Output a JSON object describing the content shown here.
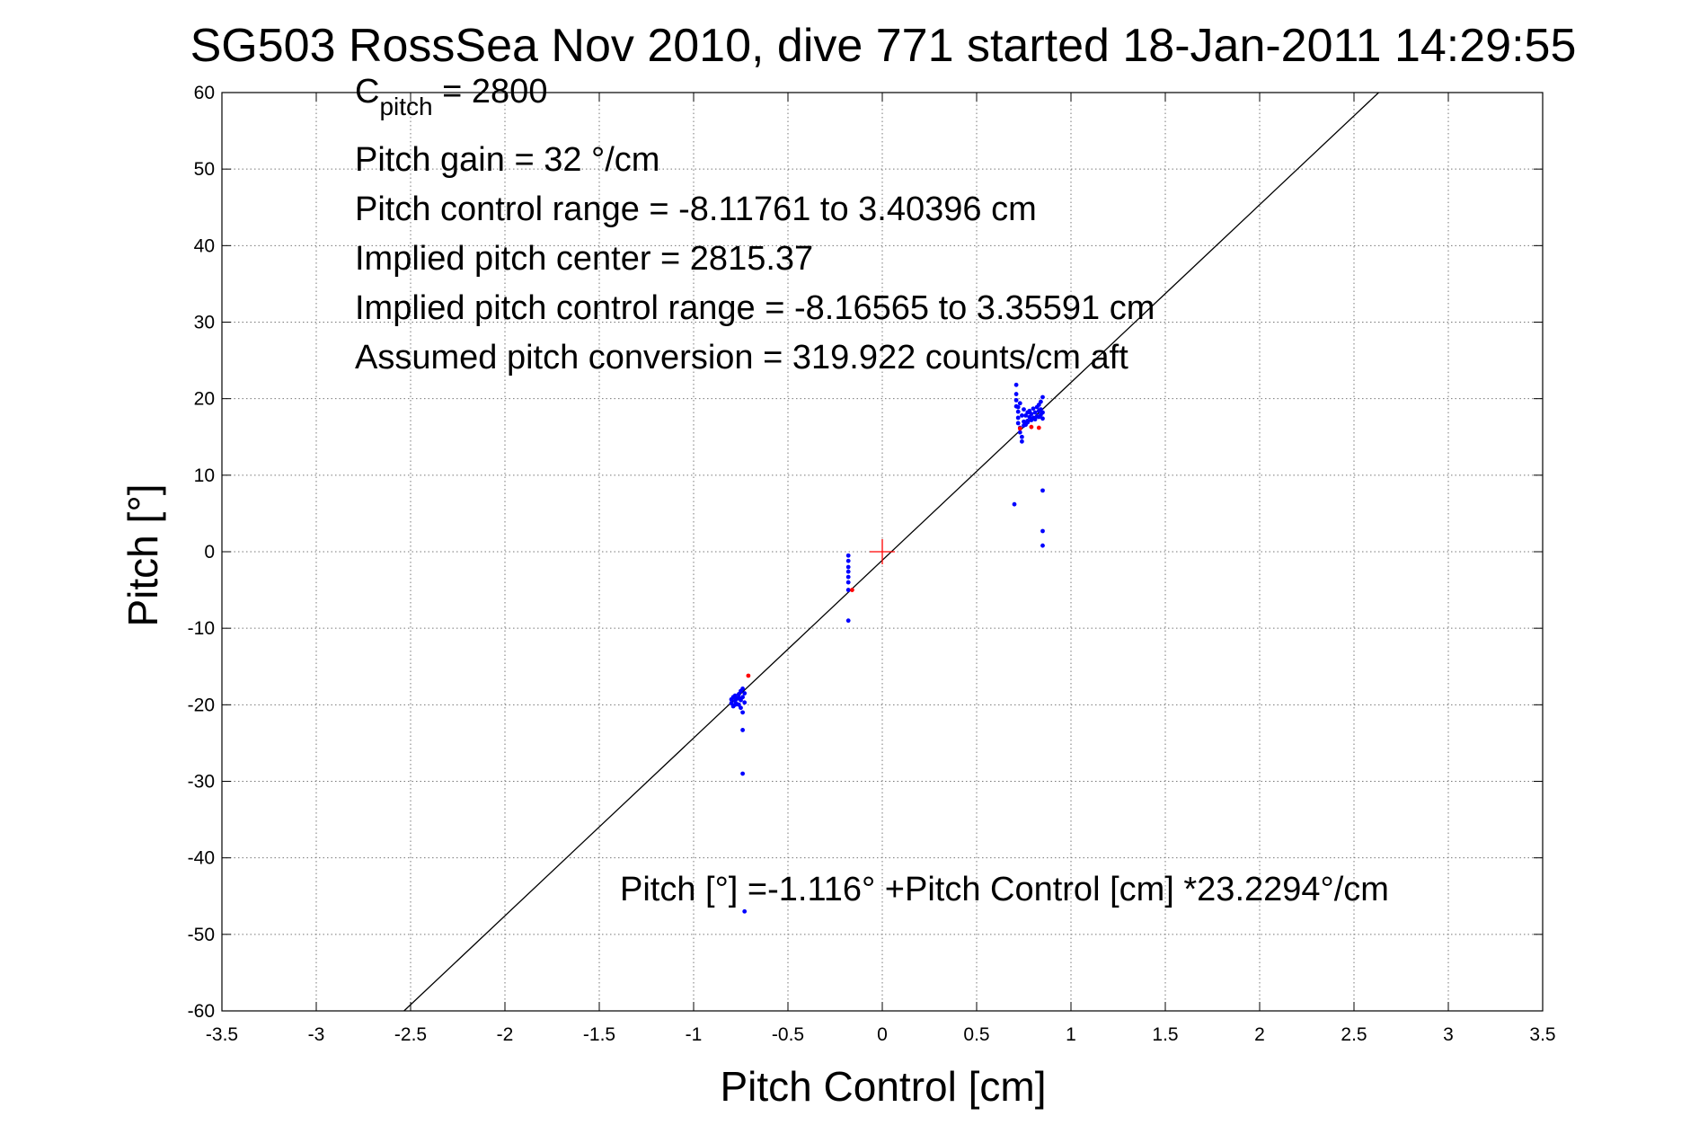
{
  "chart_data": {
    "type": "scatter",
    "title": "SG503 RossSea Nov 2010, dive 771 started 18-Jan-2011 14:29:55",
    "xlabel": "Pitch Control [cm]",
    "ylabel": "Pitch [°]",
    "xlim": [
      -3.5,
      3.5
    ],
    "ylim": [
      -60,
      60
    ],
    "xticks": [
      "-3.5",
      "-3",
      "-2.5",
      "-2",
      "-1.5",
      "-1",
      "-0.5",
      "0",
      "0.5",
      "1",
      "1.5",
      "2",
      "2.5",
      "3",
      "3.5"
    ],
    "yticks": [
      "60",
      "50",
      "40",
      "30",
      "20",
      "10",
      "0",
      "-10",
      "-20",
      "-30",
      "-40",
      "-50",
      "-60"
    ],
    "grid": true,
    "annotations": {
      "c_pitch_main": "C",
      "c_pitch_sub": "pitch",
      "c_pitch_value": " = 2800",
      "pitch_gain": "Pitch gain = 32 °/cm",
      "pitch_control_range": "Pitch control range = -8.11761 to 3.40396 cm",
      "implied_center": "Implied pitch center = 2815.37",
      "implied_range": "Implied pitch control range = -8.16565 to 3.35591 cm",
      "assumed_conversion": "Assumed pitch conversion = 319.922 counts/cm aft",
      "fit_equation": "Pitch [°] =-1.116° +Pitch Control [cm] *23.2294°/cm"
    },
    "fit_line": {
      "intercept": -1.116,
      "slope": 23.2294,
      "color": "#000000"
    },
    "center_marker": {
      "x": 0,
      "y": 0,
      "color": "#ff0000"
    },
    "series": [
      {
        "color": "#0000ff",
        "points": [
          [
            -0.8,
            -19.3
          ],
          [
            -0.8,
            -19.8
          ],
          [
            -0.79,
            -19.0
          ],
          [
            -0.79,
            -20.2
          ],
          [
            -0.78,
            -19.5
          ],
          [
            -0.78,
            -18.8
          ],
          [
            -0.77,
            -19.9
          ],
          [
            -0.77,
            -19.2
          ],
          [
            -0.76,
            -18.6
          ],
          [
            -0.76,
            -20.0
          ],
          [
            -0.75,
            -19.4
          ],
          [
            -0.75,
            -18.2
          ],
          [
            -0.75,
            -20.4
          ],
          [
            -0.74,
            -19.0
          ],
          [
            -0.74,
            -21.0
          ],
          [
            -0.73,
            -18.5
          ],
          [
            -0.73,
            -19.7
          ],
          [
            -0.76,
            -19.1
          ],
          [
            -0.78,
            -20.0
          ],
          [
            -0.74,
            -17.9
          ],
          [
            -0.74,
            -23.3
          ],
          [
            -0.74,
            -29.0
          ],
          [
            -0.73,
            -47.0
          ],
          [
            -0.18,
            -0.5
          ],
          [
            -0.18,
            -1.2
          ],
          [
            -0.18,
            -2.0
          ],
          [
            -0.18,
            -2.6
          ],
          [
            -0.18,
            -3.3
          ],
          [
            -0.18,
            -4.0
          ],
          [
            -0.18,
            -5.0
          ],
          [
            -0.18,
            -9.0
          ],
          [
            0.71,
            21.8
          ],
          [
            0.71,
            20.6
          ],
          [
            0.71,
            19.8
          ],
          [
            0.71,
            19.0
          ],
          [
            0.72,
            18.3
          ],
          [
            0.72,
            17.5
          ],
          [
            0.72,
            16.8
          ],
          [
            0.73,
            16.2
          ],
          [
            0.73,
            15.6
          ],
          [
            0.74,
            15.0
          ],
          [
            0.74,
            14.4
          ],
          [
            0.74,
            17.8
          ],
          [
            0.75,
            18.6
          ],
          [
            0.75,
            17.0
          ],
          [
            0.76,
            17.8
          ],
          [
            0.76,
            16.6
          ],
          [
            0.77,
            18.2
          ],
          [
            0.77,
            17.1
          ],
          [
            0.78,
            17.6
          ],
          [
            0.78,
            18.4
          ],
          [
            0.79,
            17.2
          ],
          [
            0.79,
            18.0
          ],
          [
            0.8,
            17.5
          ],
          [
            0.8,
            18.7
          ],
          [
            0.81,
            17.3
          ],
          [
            0.81,
            18.2
          ],
          [
            0.82,
            17.7
          ],
          [
            0.82,
            18.9
          ],
          [
            0.83,
            17.6
          ],
          [
            0.83,
            18.4
          ],
          [
            0.83,
            19.2
          ],
          [
            0.84,
            17.9
          ],
          [
            0.84,
            18.6
          ],
          [
            0.84,
            19.6
          ],
          [
            0.85,
            18.2
          ],
          [
            0.85,
            17.4
          ],
          [
            0.85,
            20.2
          ],
          [
            0.72,
            18.9
          ],
          [
            0.73,
            19.4
          ],
          [
            0.75,
            16.5
          ],
          [
            0.77,
            16.9
          ],
          [
            0.7,
            6.2
          ],
          [
            0.85,
            8.0
          ],
          [
            0.85,
            2.7
          ],
          [
            0.85,
            0.8
          ]
        ]
      },
      {
        "color": "#ff0000",
        "points": [
          [
            -0.71,
            -16.2
          ],
          [
            -0.16,
            -5.0
          ],
          [
            0.73,
            16.1
          ],
          [
            0.79,
            16.3
          ],
          [
            0.83,
            16.2
          ]
        ]
      }
    ]
  }
}
